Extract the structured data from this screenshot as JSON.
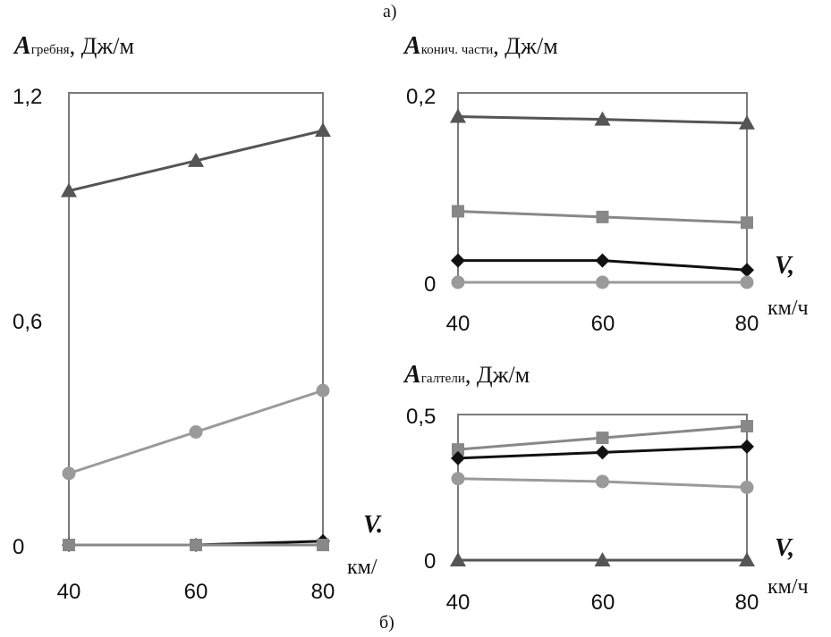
{
  "figure_labels": {
    "a": "а)",
    "b": "б)"
  },
  "chart_data": [
    {
      "id": "left",
      "type": "line",
      "title_symbol": "A",
      "title_subscript": "гребня",
      "title_unit": ", Дж/м",
      "x_symbol": "V",
      "x_symbol_suffix": ".",
      "x_unit": "км/",
      "x": [
        40,
        60,
        80
      ],
      "x_tick_labels": [
        "40",
        "60",
        "80"
      ],
      "ylim": [
        0,
        1.2
      ],
      "y_tick_labels": [
        "0",
        "0,6",
        "1,2"
      ],
      "y_ticks": [
        0,
        0.6,
        1.2
      ],
      "series": [
        {
          "marker": "triangle",
          "color": "#555555",
          "values": [
            0.94,
            1.02,
            1.1
          ]
        },
        {
          "marker": "circle",
          "color": "#9a9a9a",
          "values": [
            0.19,
            0.3,
            0.41
          ]
        },
        {
          "marker": "diamond",
          "color": "#111111",
          "values": [
            0.0,
            0.0,
            0.01
          ]
        },
        {
          "marker": "square",
          "color": "#888888",
          "values": [
            0.0,
            0.0,
            0.0
          ]
        }
      ]
    },
    {
      "id": "top-right",
      "type": "line",
      "title_symbol": "A",
      "title_subscript": "конич. части",
      "title_unit": ", Дж/м",
      "x_symbol": "V",
      "x_symbol_suffix": ",",
      "x_unit": "км/ч",
      "x": [
        40,
        60,
        80
      ],
      "x_tick_labels": [
        "40",
        "60",
        "80"
      ],
      "ylim": [
        0,
        0.2
      ],
      "y_tick_labels": [
        "0",
        "0,2"
      ],
      "y_ticks": [
        0,
        0.2
      ],
      "series": [
        {
          "marker": "triangle",
          "color": "#555555",
          "values": [
            0.175,
            0.172,
            0.168
          ]
        },
        {
          "marker": "square",
          "color": "#888888",
          "values": [
            0.075,
            0.069,
            0.063
          ]
        },
        {
          "marker": "diamond",
          "color": "#111111",
          "values": [
            0.023,
            0.023,
            0.013
          ]
        },
        {
          "marker": "circle",
          "color": "#9a9a9a",
          "values": [
            0.0,
            0.0,
            0.0
          ]
        }
      ]
    },
    {
      "id": "bottom-right",
      "type": "line",
      "title_symbol": "A",
      "title_subscript": "галтели",
      "title_unit": ", Дж/м",
      "x_symbol": "V",
      "x_symbol_suffix": ",",
      "x_unit": "км/ч",
      "x": [
        40,
        60,
        80
      ],
      "x_tick_labels": [
        "40",
        "60",
        "80"
      ],
      "ylim": [
        0,
        0.5
      ],
      "y_tick_labels": [
        "0",
        "0,5"
      ],
      "y_ticks": [
        0,
        0.5
      ],
      "series": [
        {
          "marker": "square",
          "color": "#888888",
          "values": [
            0.38,
            0.42,
            0.46
          ]
        },
        {
          "marker": "diamond",
          "color": "#111111",
          "values": [
            0.35,
            0.37,
            0.39
          ]
        },
        {
          "marker": "circle",
          "color": "#9a9a9a",
          "values": [
            0.28,
            0.27,
            0.25
          ]
        },
        {
          "marker": "triangle",
          "color": "#555555",
          "values": [
            0.0,
            0.0,
            0.0
          ]
        }
      ]
    }
  ]
}
